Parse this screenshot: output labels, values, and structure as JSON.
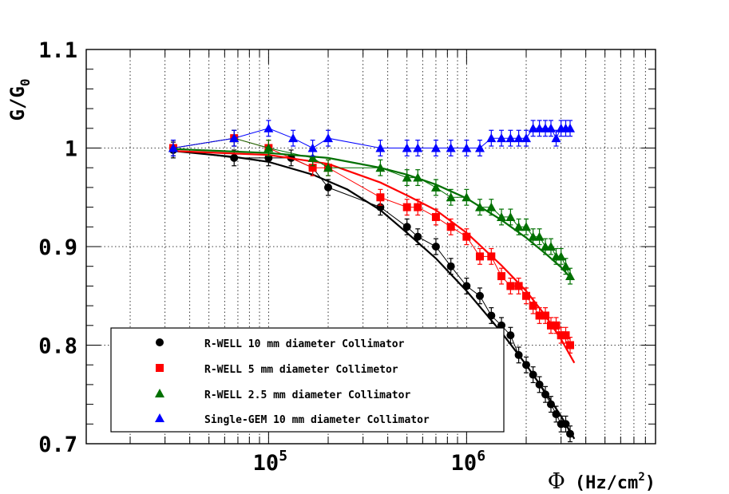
{
  "chart_data": {
    "type": "scatter",
    "xscale": "log",
    "xlim": [
      12000,
      9000000
    ],
    "ylim": [
      0.7,
      1.1
    ],
    "xlabel": {
      "symbol": "Φ",
      "unit_prefix": "(Hz/cm",
      "unit_power": "2",
      "unit_suffix": ")"
    },
    "ylabel": {
      "main": "G/G",
      "sub": "0"
    },
    "yticks": [
      {
        "value": 0.7,
        "label": "0.7"
      },
      {
        "value": 0.8,
        "label": "0.8"
      },
      {
        "value": 0.9,
        "label": "0.9"
      },
      {
        "value": 1.0,
        "label": "1"
      },
      {
        "value": 1.1,
        "label": "1.1"
      }
    ],
    "xticks": [
      {
        "value": 100000,
        "base": "10",
        "exp": "5"
      },
      {
        "value": 1000000,
        "base": "10",
        "exp": "6"
      }
    ],
    "grid": true,
    "legend_position": "bottom-left",
    "series": [
      {
        "name": "R-WELL 10 mm diameter Collimator",
        "color": "#000000",
        "marker": "circle",
        "points": [
          [
            33000,
            0.998
          ],
          [
            67000,
            0.99
          ],
          [
            100000,
            0.99
          ],
          [
            130000,
            0.99
          ],
          [
            167000,
            0.98
          ],
          [
            200000,
            0.96
          ],
          [
            367000,
            0.94
          ],
          [
            500000,
            0.92
          ],
          [
            567000,
            0.91
          ],
          [
            700000,
            0.9
          ],
          [
            833000,
            0.88
          ],
          [
            1000000,
            0.86
          ],
          [
            1167000,
            0.85
          ],
          [
            1333000,
            0.83
          ],
          [
            1500000,
            0.82
          ],
          [
            1667000,
            0.81
          ],
          [
            1833000,
            0.79
          ],
          [
            2000000,
            0.78
          ],
          [
            2167000,
            0.77
          ],
          [
            2333000,
            0.76
          ],
          [
            2500000,
            0.75
          ],
          [
            2667000,
            0.74
          ],
          [
            2833000,
            0.73
          ],
          [
            3000000,
            0.72
          ],
          [
            3167000,
            0.72
          ],
          [
            3333000,
            0.71
          ]
        ],
        "errors": [
          [
            33000,
            0.008
          ],
          [
            67000,
            0.008
          ],
          [
            100000,
            0.008
          ],
          [
            130000,
            0.008
          ],
          [
            167000,
            0.008
          ],
          [
            200000,
            0.008
          ],
          [
            367000,
            0.008
          ],
          [
            500000,
            0.008
          ],
          [
            567000,
            0.008
          ],
          [
            700000,
            0.008
          ],
          [
            833000,
            0.008
          ],
          [
            1000000,
            0.008
          ],
          [
            1167000,
            0.008
          ],
          [
            1333000,
            0.008
          ],
          [
            1500000,
            0.008
          ],
          [
            1667000,
            0.008
          ],
          [
            1833000,
            0.008
          ],
          [
            2000000,
            0.008
          ],
          [
            2167000,
            0.008
          ],
          [
            2333000,
            0.008
          ],
          [
            2500000,
            0.008
          ],
          [
            2667000,
            0.008
          ],
          [
            2833000,
            0.008
          ],
          [
            3000000,
            0.008
          ],
          [
            3167000,
            0.008
          ],
          [
            3333000,
            0.008
          ]
        ],
        "fit": [
          [
            33000,
            0.997
          ],
          [
            67000,
            0.991
          ],
          [
            100000,
            0.986
          ],
          [
            167000,
            0.973
          ],
          [
            250000,
            0.958
          ],
          [
            367000,
            0.937
          ],
          [
            500000,
            0.914
          ],
          [
            700000,
            0.888
          ],
          [
            1000000,
            0.855
          ],
          [
            1500000,
            0.813
          ],
          [
            2000000,
            0.78
          ],
          [
            2500000,
            0.752
          ],
          [
            3000000,
            0.728
          ],
          [
            3500000,
            0.705
          ]
        ]
      },
      {
        "name": "R-WELL 5 mm diameter Collimetor",
        "color": "#ff0000",
        "marker": "square",
        "points": [
          [
            33000,
            1.0
          ],
          [
            67000,
            1.01
          ],
          [
            100000,
            1.0
          ],
          [
            167000,
            0.98
          ],
          [
            200000,
            0.98
          ],
          [
            367000,
            0.95
          ],
          [
            500000,
            0.94
          ],
          [
            567000,
            0.94
          ],
          [
            700000,
            0.93
          ],
          [
            833000,
            0.92
          ],
          [
            1000000,
            0.91
          ],
          [
            1167000,
            0.89
          ],
          [
            1333000,
            0.89
          ],
          [
            1500000,
            0.87
          ],
          [
            1667000,
            0.86
          ],
          [
            1833000,
            0.86
          ],
          [
            2000000,
            0.85
          ],
          [
            2167000,
            0.84
          ],
          [
            2333000,
            0.83
          ],
          [
            2500000,
            0.83
          ],
          [
            2667000,
            0.82
          ],
          [
            2833000,
            0.82
          ],
          [
            3000000,
            0.81
          ],
          [
            3167000,
            0.81
          ],
          [
            3333000,
            0.8
          ]
        ],
        "errors": [
          [
            33000,
            0.008
          ],
          [
            67000,
            0.008
          ],
          [
            100000,
            0.008
          ],
          [
            167000,
            0.008
          ],
          [
            200000,
            0.008
          ],
          [
            367000,
            0.008
          ],
          [
            500000,
            0.008
          ],
          [
            567000,
            0.008
          ],
          [
            700000,
            0.008
          ],
          [
            833000,
            0.008
          ],
          [
            1000000,
            0.008
          ],
          [
            1167000,
            0.008
          ],
          [
            1333000,
            0.008
          ],
          [
            1500000,
            0.008
          ],
          [
            1667000,
            0.008
          ],
          [
            1833000,
            0.008
          ],
          [
            2000000,
            0.008
          ],
          [
            2167000,
            0.008
          ],
          [
            2333000,
            0.008
          ],
          [
            2500000,
            0.008
          ],
          [
            2667000,
            0.008
          ],
          [
            2833000,
            0.008
          ],
          [
            3000000,
            0.008
          ],
          [
            3167000,
            0.008
          ],
          [
            3333000,
            0.008
          ]
        ],
        "fit": [
          [
            33000,
            0.997
          ],
          [
            100000,
            0.993
          ],
          [
            200000,
            0.984
          ],
          [
            367000,
            0.965
          ],
          [
            500000,
            0.952
          ],
          [
            700000,
            0.937
          ],
          [
            1000000,
            0.914
          ],
          [
            1500000,
            0.881
          ],
          [
            2000000,
            0.855
          ],
          [
            2500000,
            0.83
          ],
          [
            3000000,
            0.806
          ],
          [
            3500000,
            0.782
          ]
        ]
      },
      {
        "name": "R-WELL 2.5 mm diameter Collimator",
        "color": "#007000",
        "marker": "triangle",
        "points": [
          [
            33000,
            1.0
          ],
          [
            67000,
            1.01
          ],
          [
            100000,
            1.0
          ],
          [
            167000,
            0.99
          ],
          [
            200000,
            0.98
          ],
          [
            367000,
            0.98
          ],
          [
            500000,
            0.97
          ],
          [
            567000,
            0.97
          ],
          [
            700000,
            0.96
          ],
          [
            833000,
            0.95
          ],
          [
            1000000,
            0.95
          ],
          [
            1167000,
            0.94
          ],
          [
            1333000,
            0.94
          ],
          [
            1500000,
            0.93
          ],
          [
            1667000,
            0.93
          ],
          [
            1833000,
            0.92
          ],
          [
            2000000,
            0.92
          ],
          [
            2167000,
            0.91
          ],
          [
            2333000,
            0.91
          ],
          [
            2500000,
            0.9
          ],
          [
            2667000,
            0.9
          ],
          [
            2833000,
            0.89
          ],
          [
            3000000,
            0.89
          ],
          [
            3167000,
            0.88
          ],
          [
            3333000,
            0.87
          ]
        ],
        "errors": [
          [
            33000,
            0.008
          ],
          [
            67000,
            0.008
          ],
          [
            100000,
            0.008
          ],
          [
            167000,
            0.008
          ],
          [
            200000,
            0.008
          ],
          [
            367000,
            0.008
          ],
          [
            500000,
            0.008
          ],
          [
            567000,
            0.008
          ],
          [
            700000,
            0.008
          ],
          [
            833000,
            0.008
          ],
          [
            1000000,
            0.008
          ],
          [
            1167000,
            0.008
          ],
          [
            1333000,
            0.008
          ],
          [
            1500000,
            0.008
          ],
          [
            1667000,
            0.008
          ],
          [
            1833000,
            0.008
          ],
          [
            2000000,
            0.008
          ],
          [
            2167000,
            0.008
          ],
          [
            2333000,
            0.008
          ],
          [
            2500000,
            0.008
          ],
          [
            2667000,
            0.008
          ],
          [
            2833000,
            0.008
          ],
          [
            3000000,
            0.008
          ],
          [
            3167000,
            0.008
          ],
          [
            3333000,
            0.008
          ]
        ],
        "fit": [
          [
            33000,
            0.999
          ],
          [
            100000,
            0.995
          ],
          [
            200000,
            0.99
          ],
          [
            367000,
            0.98
          ],
          [
            500000,
            0.973
          ],
          [
            700000,
            0.963
          ],
          [
            1000000,
            0.949
          ],
          [
            1500000,
            0.927
          ],
          [
            2000000,
            0.909
          ],
          [
            2500000,
            0.893
          ],
          [
            3000000,
            0.879
          ],
          [
            3300000,
            0.87
          ]
        ]
      },
      {
        "name": "Single-GEM 10 mm diameter Collimator",
        "color": "#0000ff",
        "marker": "triangle",
        "points": [
          [
            33000,
            1.0
          ],
          [
            67000,
            1.01
          ],
          [
            100000,
            1.02
          ],
          [
            133000,
            1.01
          ],
          [
            167000,
            1.0
          ],
          [
            200000,
            1.01
          ],
          [
            367000,
            1.0
          ],
          [
            500000,
            1.0
          ],
          [
            567000,
            1.0
          ],
          [
            700000,
            1.0
          ],
          [
            833000,
            1.0
          ],
          [
            1000000,
            1.0
          ],
          [
            1167000,
            1.0
          ],
          [
            1333000,
            1.01
          ],
          [
            1500000,
            1.01
          ],
          [
            1667000,
            1.01
          ],
          [
            1833000,
            1.01
          ],
          [
            2000000,
            1.01
          ],
          [
            2167000,
            1.02
          ],
          [
            2333000,
            1.02
          ],
          [
            2500000,
            1.02
          ],
          [
            2667000,
            1.02
          ],
          [
            2833000,
            1.01
          ],
          [
            3000000,
            1.02
          ],
          [
            3167000,
            1.02
          ],
          [
            3333000,
            1.02
          ]
        ],
        "errors": [
          [
            33000,
            0.008
          ],
          [
            67000,
            0.008
          ],
          [
            100000,
            0.008
          ],
          [
            133000,
            0.008
          ],
          [
            167000,
            0.008
          ],
          [
            200000,
            0.008
          ],
          [
            367000,
            0.008
          ],
          [
            500000,
            0.008
          ],
          [
            567000,
            0.008
          ],
          [
            700000,
            0.008
          ],
          [
            833000,
            0.008
          ],
          [
            1000000,
            0.008
          ],
          [
            1167000,
            0.008
          ],
          [
            1333000,
            0.008
          ],
          [
            1500000,
            0.008
          ],
          [
            1667000,
            0.008
          ],
          [
            1833000,
            0.008
          ],
          [
            2000000,
            0.008
          ],
          [
            2167000,
            0.008
          ],
          [
            2333000,
            0.008
          ],
          [
            2500000,
            0.008
          ],
          [
            2667000,
            0.008
          ],
          [
            2833000,
            0.008
          ],
          [
            3000000,
            0.008
          ],
          [
            3167000,
            0.008
          ],
          [
            3333000,
            0.008
          ]
        ],
        "fit": []
      }
    ]
  }
}
